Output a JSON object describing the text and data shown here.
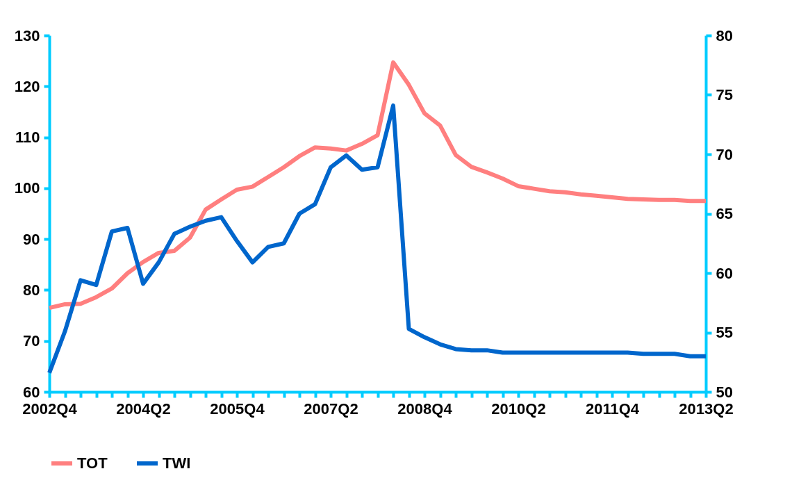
{
  "chart_data": {
    "type": "line",
    "categories": [
      "2002Q4",
      null,
      null,
      null,
      null,
      null,
      "2004Q2",
      null,
      null,
      null,
      null,
      null,
      "2005Q4",
      null,
      null,
      null,
      null,
      null,
      "2007Q2",
      null,
      null,
      null,
      null,
      null,
      "2008Q4",
      null,
      null,
      null,
      null,
      null,
      "2010Q2",
      null,
      null,
      null,
      null,
      null,
      "2011Q4",
      null,
      null,
      null,
      null,
      null,
      "2013Q2"
    ],
    "series": [
      {
        "name": "TOT",
        "color": "#ff7f7f",
        "values": [
          76.5,
          77.2,
          77.3,
          78.6,
          80.3,
          83.3,
          85.5,
          87.3,
          87.7,
          90.3,
          95.8,
          97.8,
          99.7,
          100.3,
          102.2,
          104.1,
          106.3,
          108.0,
          107.8,
          107.4,
          108.7,
          110.4,
          124.7,
          120.3,
          114.7,
          112.3,
          106.5,
          104.2,
          103.1,
          101.9,
          100.4,
          99.9,
          99.4,
          99.2,
          98.8,
          98.5,
          98.2,
          97.9,
          97.8,
          97.7,
          97.7,
          97.5,
          97.5
        ]
      },
      {
        "name": "TWI",
        "color": "#0066cc",
        "axis": "y2",
        "values": [
          51.6,
          55.1,
          59.4,
          59.0,
          63.5,
          63.8,
          59.1,
          60.9,
          63.3,
          63.9,
          64.4,
          64.7,
          62.7,
          60.9,
          62.2,
          62.5,
          65.0,
          65.8,
          68.9,
          69.9,
          68.7,
          68.9,
          74.1,
          55.3,
          54.6,
          54.0,
          53.6,
          53.5,
          53.5,
          53.3,
          53.3,
          53.3,
          53.3,
          53.3,
          53.3,
          53.3,
          53.3,
          53.3,
          53.2,
          53.2,
          53.2,
          53.0,
          53.0
        ]
      }
    ],
    "ylim": [
      60,
      130
    ],
    "yticks": [
      60,
      70,
      80,
      90,
      100,
      110,
      120,
      130
    ],
    "y2lim": [
      50,
      80
    ],
    "y2ticks": [
      50,
      55,
      60,
      65,
      70,
      75,
      80
    ],
    "grid": false,
    "legend": "bottom",
    "marker": "none",
    "line_style": "solid"
  }
}
